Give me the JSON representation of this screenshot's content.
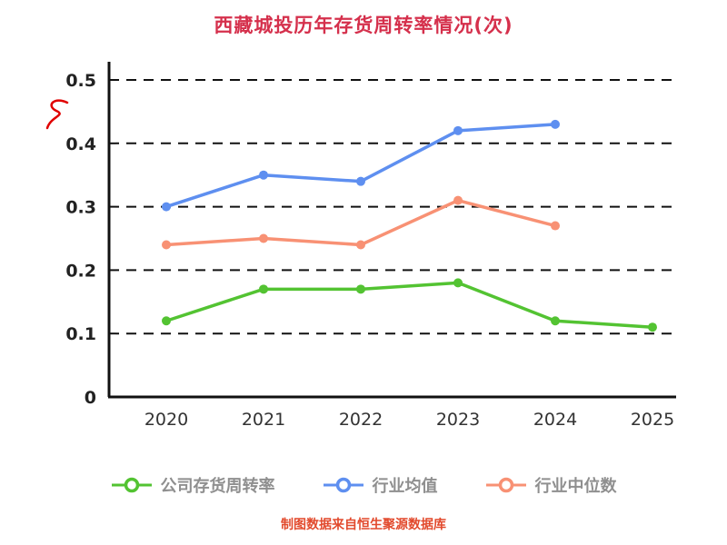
{
  "title": "西藏城投历年存货周转率情况(次)",
  "footer": "制图数据来自恒生聚源数据库",
  "chart_data": {
    "type": "line",
    "title": "西藏城投历年存货周转率情况(次)",
    "x_labels": [
      "2020",
      "2021",
      "2022",
      "2023",
      "2024",
      "2025"
    ],
    "yticks": [
      "0",
      "0.1",
      "0.2",
      "0.3",
      "0.4",
      "0.5"
    ],
    "ylim": [
      0,
      0.5
    ],
    "grid": "horizontal-dashed",
    "legend_position": "bottom",
    "series": [
      {
        "name": "公司存货周转率",
        "color": "#53c332",
        "values": [
          0.12,
          0.17,
          0.17,
          0.18,
          0.12,
          0.11
        ]
      },
      {
        "name": "行业均值",
        "color": "#5e8ff0",
        "values": [
          0.3,
          0.35,
          0.34,
          0.42,
          0.43,
          null
        ]
      },
      {
        "name": "行业中位数",
        "color": "#f89174",
        "values": [
          0.24,
          0.25,
          0.24,
          0.31,
          0.27,
          null
        ]
      }
    ],
    "colors": {
      "title": "#d5304c",
      "footer": "#e24a2d",
      "axis": "#111111",
      "tick_label": "#222222",
      "legend_label": "#8f8f8f",
      "annotation_red": "#e00000"
    }
  }
}
